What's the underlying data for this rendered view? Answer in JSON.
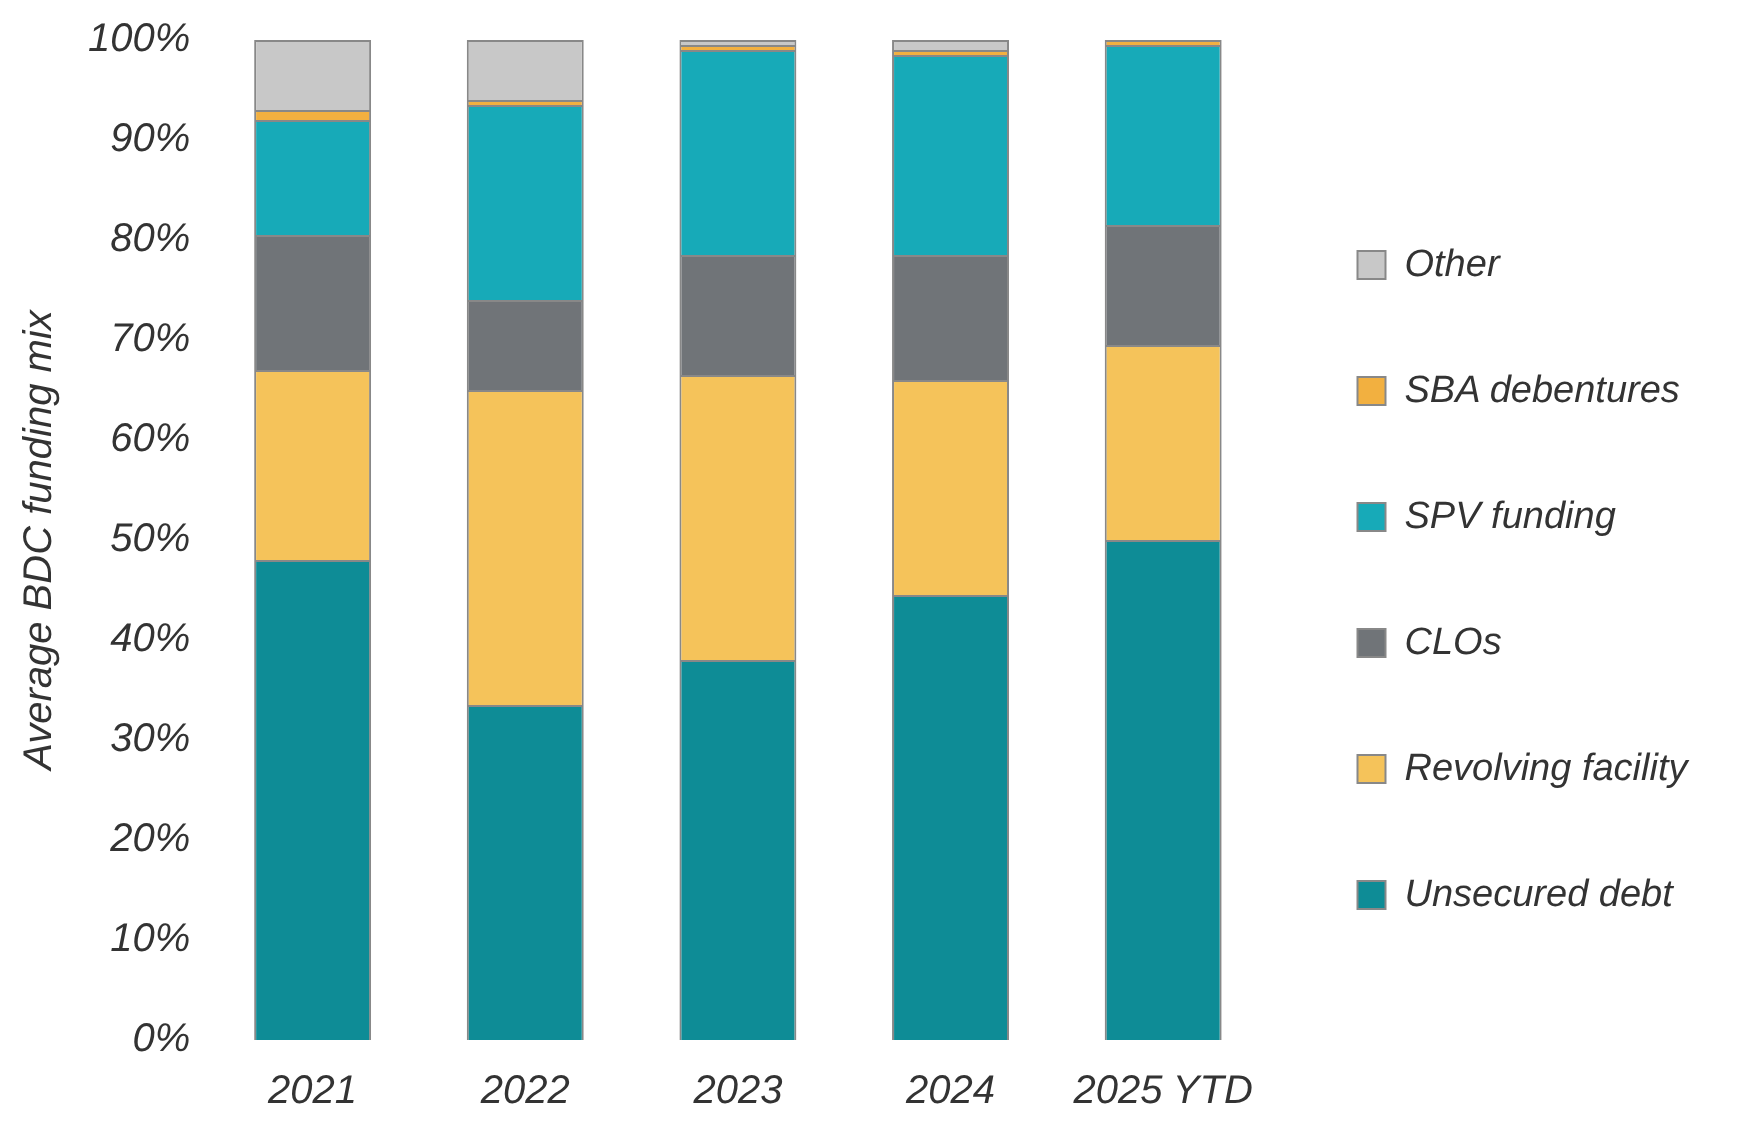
{
  "chart_data": {
    "type": "bar",
    "stacked": true,
    "ylabel": "Average BDC funding mix",
    "categories": [
      "2021",
      "2022",
      "2023",
      "2024",
      "2025 YTD"
    ],
    "series": [
      {
        "name": "Unsecured debt",
        "color": "#0e8c96",
        "values": [
          48,
          33.5,
          38,
          44.5,
          50
        ]
      },
      {
        "name": "Revolving facility",
        "color": "#f5c35a",
        "values": [
          19,
          31.5,
          28.5,
          21.5,
          19.5
        ]
      },
      {
        "name": "CLOs",
        "color": "#707478",
        "values": [
          13.5,
          9,
          12,
          12.5,
          12
        ]
      },
      {
        "name": "SPV funding",
        "color": "#17aab8",
        "values": [
          11.5,
          19.5,
          20.5,
          20,
          18
        ]
      },
      {
        "name": "SBA debentures",
        "color": "#f2b040",
        "values": [
          1,
          0.5,
          0.5,
          0.5,
          0.5
        ]
      },
      {
        "name": "Other",
        "color": "#c8c8c8",
        "values": [
          7,
          6,
          0.5,
          1,
          0
        ]
      }
    ],
    "ylim": [
      0,
      100
    ],
    "yticks": [
      {
        "value": 0,
        "label": "0%"
      },
      {
        "value": 10,
        "label": "10%"
      },
      {
        "value": 20,
        "label": "20%"
      },
      {
        "value": 30,
        "label": "30%"
      },
      {
        "value": 40,
        "label": "40%"
      },
      {
        "value": 50,
        "label": "50%"
      },
      {
        "value": 60,
        "label": "60%"
      },
      {
        "value": 70,
        "label": "70%"
      },
      {
        "value": 80,
        "label": "80%"
      },
      {
        "value": 90,
        "label": "90%"
      },
      {
        "value": 100,
        "label": "100%"
      }
    ],
    "grid": false,
    "legend": "right"
  }
}
